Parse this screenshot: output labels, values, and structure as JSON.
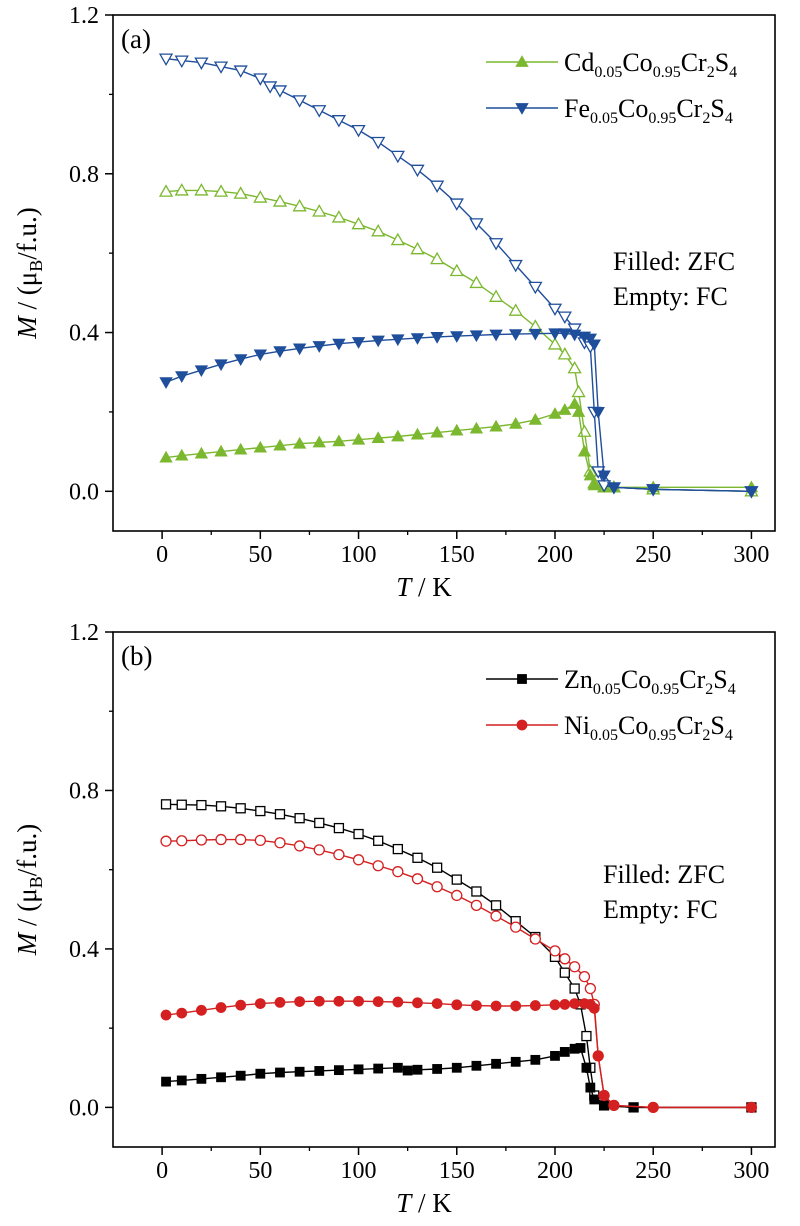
{
  "chart_data": [
    {
      "type": "scatter",
      "panel_label": "(a)",
      "xlabel": {
        "var": "T",
        "rest": " / K"
      },
      "ylabel": {
        "var": "M",
        "rest": " / (μ",
        "sub": "B",
        "after": "/f.u.)"
      },
      "xlim": [
        -25,
        312
      ],
      "ylim": [
        -0.1,
        1.2
      ],
      "xticks": [
        "0",
        "50",
        "100",
        "150",
        "200",
        "250",
        "300"
      ],
      "yticks": [
        "0.0",
        "0.4",
        "0.8",
        "1.2"
      ],
      "note_lines": [
        "Filled: ZFC",
        "Empty: FC"
      ],
      "legend_position": "top-right",
      "series": [
        {
          "legend_parts": [
            [
              "Cd",
              ""
            ],
            [
              "0.05",
              "sub"
            ],
            [
              "Co",
              ""
            ],
            [
              "0.95",
              "sub"
            ],
            [
              "Cr",
              ""
            ],
            [
              "2",
              "sub"
            ],
            [
              "S",
              ""
            ],
            [
              "4",
              "sub"
            ]
          ],
          "color": "#7cb82f",
          "marker": "triangle-up",
          "zfc": {
            "x": [
              2,
              10,
              20,
              30,
              40,
              50,
              60,
              70,
              80,
              90,
              100,
              110,
              120,
              130,
              140,
              150,
              160,
              170,
              180,
              190,
              200,
              205,
              210,
              212,
              215,
              218,
              220,
              225,
              230,
              250,
              300
            ],
            "y": [
              0.085,
              0.09,
              0.095,
              0.1,
              0.105,
              0.11,
              0.115,
              0.12,
              0.123,
              0.126,
              0.13,
              0.134,
              0.138,
              0.143,
              0.148,
              0.153,
              0.158,
              0.163,
              0.17,
              0.18,
              0.195,
              0.205,
              0.22,
              0.2,
              0.1,
              0.04,
              0.015,
              0.01,
              0.01,
              0.01,
              0.01
            ]
          },
          "fc": {
            "x": [
              2,
              10,
              20,
              30,
              40,
              50,
              60,
              70,
              80,
              90,
              100,
              110,
              120,
              130,
              140,
              150,
              160,
              170,
              180,
              190,
              200,
              205,
              210,
              212,
              215,
              218,
              220,
              225,
              230,
              250,
              300
            ],
            "y": [
              0.755,
              0.758,
              0.758,
              0.755,
              0.75,
              0.74,
              0.73,
              0.718,
              0.705,
              0.69,
              0.673,
              0.655,
              0.633,
              0.61,
              0.585,
              0.555,
              0.525,
              0.49,
              0.455,
              0.415,
              0.37,
              0.345,
              0.31,
              0.25,
              0.15,
              0.05,
              0.02,
              0.01,
              0.01,
              0.005,
              0.0
            ]
          }
        },
        {
          "legend_parts": [
            [
              "Fe",
              ""
            ],
            [
              "0.05",
              "sub"
            ],
            [
              "Co",
              ""
            ],
            [
              "0.95",
              "sub"
            ],
            [
              "Cr",
              ""
            ],
            [
              "2",
              "sub"
            ],
            [
              "S",
              ""
            ],
            [
              "4",
              "sub"
            ]
          ],
          "color": "#1f4e9b",
          "marker": "triangle-down",
          "zfc": {
            "x": [
              2,
              10,
              20,
              30,
              40,
              50,
              60,
              70,
              80,
              90,
              100,
              110,
              120,
              130,
              140,
              150,
              160,
              170,
              180,
              190,
              200,
              205,
              210,
              215,
              218,
              220,
              222,
              225,
              230,
              250,
              300
            ],
            "y": [
              0.275,
              0.29,
              0.305,
              0.32,
              0.333,
              0.345,
              0.353,
              0.36,
              0.366,
              0.372,
              0.376,
              0.38,
              0.383,
              0.386,
              0.389,
              0.391,
              0.393,
              0.395,
              0.396,
              0.397,
              0.398,
              0.398,
              0.395,
              0.39,
              0.385,
              0.37,
              0.2,
              0.04,
              0.01,
              0.005,
              0.0
            ]
          },
          "fc": {
            "x": [
              2,
              10,
              20,
              30,
              40,
              50,
              55,
              60,
              70,
              80,
              90,
              100,
              110,
              120,
              130,
              140,
              150,
              160,
              170,
              180,
              190,
              200,
              205,
              210,
              215,
              218,
              220,
              222,
              225,
              230,
              250,
              300
            ],
            "y": [
              1.09,
              1.085,
              1.08,
              1.07,
              1.06,
              1.04,
              1.02,
              1.01,
              0.985,
              0.96,
              0.935,
              0.91,
              0.88,
              0.845,
              0.81,
              0.77,
              0.725,
              0.675,
              0.625,
              0.57,
              0.515,
              0.46,
              0.44,
              0.41,
              0.375,
              0.365,
              0.2,
              0.05,
              0.015,
              0.01,
              0.005,
              0.0
            ]
          }
        }
      ]
    },
    {
      "type": "scatter",
      "panel_label": "(b)",
      "xlabel": {
        "var": "T",
        "rest": " / K"
      },
      "ylabel": {
        "var": "M",
        "rest": " / (μ",
        "sub": "B",
        "after": "/f.u.)"
      },
      "xlim": [
        -25,
        312
      ],
      "ylim": [
        -0.1,
        1.2
      ],
      "xticks": [
        "0",
        "50",
        "100",
        "150",
        "200",
        "250",
        "300"
      ],
      "yticks": [
        "0.0",
        "0.4",
        "0.8",
        "1.2"
      ],
      "note_lines": [
        "Filled: ZFC",
        "Empty: FC"
      ],
      "legend_position": "top-right",
      "series": [
        {
          "legend_parts": [
            [
              "Zn",
              ""
            ],
            [
              "0.05",
              "sub"
            ],
            [
              "Co",
              ""
            ],
            [
              "0.95",
              "sub"
            ],
            [
              "Cr",
              ""
            ],
            [
              "2",
              "sub"
            ],
            [
              "S",
              ""
            ],
            [
              "4",
              "sub"
            ]
          ],
          "color": "#000000",
          "marker": "square",
          "zfc": {
            "x": [
              2,
              10,
              20,
              30,
              40,
              50,
              60,
              70,
              80,
              90,
              100,
              110,
              120,
              125,
              130,
              140,
              150,
              160,
              170,
              180,
              190,
              200,
              205,
              210,
              213,
              216,
              218,
              220,
              225,
              240,
              300
            ],
            "y": [
              0.065,
              0.068,
              0.072,
              0.076,
              0.08,
              0.085,
              0.088,
              0.09,
              0.092,
              0.094,
              0.096,
              0.098,
              0.1,
              0.093,
              0.095,
              0.097,
              0.1,
              0.105,
              0.11,
              0.115,
              0.12,
              0.13,
              0.14,
              0.148,
              0.15,
              0.1,
              0.05,
              0.02,
              0.005,
              0.0,
              0.0
            ]
          },
          "fc": {
            "x": [
              2,
              10,
              20,
              30,
              40,
              50,
              60,
              70,
              80,
              90,
              100,
              110,
              120,
              130,
              140,
              150,
              160,
              170,
              180,
              190,
              200,
              205,
              210,
              213,
              216,
              218,
              220,
              225,
              240,
              300
            ],
            "y": [
              0.765,
              0.764,
              0.763,
              0.76,
              0.755,
              0.748,
              0.74,
              0.73,
              0.718,
              0.705,
              0.69,
              0.673,
              0.652,
              0.63,
              0.605,
              0.575,
              0.545,
              0.51,
              0.47,
              0.43,
              0.38,
              0.34,
              0.3,
              0.26,
              0.18,
              0.1,
              0.03,
              0.005,
              0.0,
              0.0
            ]
          }
        },
        {
          "legend_parts": [
            [
              "Ni",
              ""
            ],
            [
              "0.05",
              "sub"
            ],
            [
              "Co",
              ""
            ],
            [
              "0.95",
              "sub"
            ],
            [
              "Cr",
              ""
            ],
            [
              "2",
              "sub"
            ],
            [
              "S",
              ""
            ],
            [
              "4",
              "sub"
            ]
          ],
          "color": "#d42020",
          "marker": "circle",
          "zfc": {
            "x": [
              2,
              10,
              20,
              30,
              40,
              50,
              60,
              70,
              80,
              90,
              100,
              110,
              120,
              130,
              140,
              150,
              160,
              170,
              180,
              190,
              200,
              205,
              210,
              215,
              218,
              220,
              222,
              225,
              230,
              250,
              300
            ],
            "y": [
              0.233,
              0.238,
              0.245,
              0.252,
              0.258,
              0.262,
              0.265,
              0.267,
              0.268,
              0.268,
              0.268,
              0.267,
              0.266,
              0.264,
              0.262,
              0.259,
              0.257,
              0.256,
              0.256,
              0.257,
              0.259,
              0.26,
              0.262,
              0.262,
              0.26,
              0.25,
              0.13,
              0.03,
              0.005,
              0.0,
              0.0
            ]
          },
          "fc": {
            "x": [
              2,
              10,
              20,
              30,
              40,
              50,
              60,
              70,
              80,
              90,
              100,
              110,
              120,
              130,
              140,
              150,
              160,
              170,
              180,
              190,
              200,
              205,
              210,
              215,
              218,
              220,
              222,
              225,
              230,
              250,
              300
            ],
            "y": [
              0.672,
              0.673,
              0.675,
              0.676,
              0.676,
              0.674,
              0.668,
              0.66,
              0.65,
              0.638,
              0.625,
              0.61,
              0.595,
              0.577,
              0.557,
              0.535,
              0.51,
              0.483,
              0.455,
              0.425,
              0.395,
              0.375,
              0.355,
              0.33,
              0.3,
              0.26,
              0.13,
              0.03,
              0.005,
              0.0,
              0.0
            ]
          }
        }
      ]
    }
  ]
}
